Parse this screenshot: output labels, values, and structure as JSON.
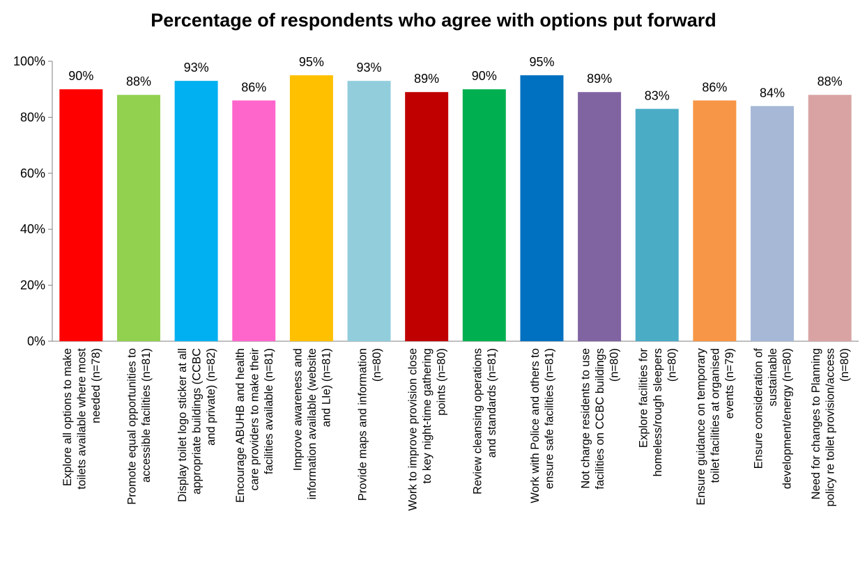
{
  "chart_data": {
    "type": "bar",
    "title": "Percentage of respondents who agree with options put forward",
    "xlabel": "",
    "ylabel": "",
    "ylim": [
      0,
      100
    ],
    "y_ticks": [
      "0%",
      "20%",
      "40%",
      "60%",
      "80%",
      "100%"
    ],
    "grid": false,
    "legend": "none",
    "categories": [
      [
        "Explore all options to make",
        "toilets available where most",
        "needed (n=78)"
      ],
      [
        "Promote equal opportunities to",
        "accessible facilities (n=81)"
      ],
      [
        "Display toilet logo sticker at all",
        "appropriate buildings (CCBC",
        "and private) (n=82)"
      ],
      [
        "Encourage ABUHB and health",
        "care providers to make their",
        "facilities available (n=81)"
      ],
      [
        "Improve awareness and",
        "information available (website",
        "and LIe) (n=81)"
      ],
      [
        "Provide maps and information",
        "(n=80)"
      ],
      [
        "Work to improve provision close",
        "to key night-time gathering",
        "points (n=80)"
      ],
      [
        "Review cleansing operations",
        "and standards (n=81)"
      ],
      [
        "Work with Police and others to",
        "ensure safe facilities (n=81)"
      ],
      [
        "Not charge residents to use",
        "facilities on CCBC buildings",
        "(n=80)"
      ],
      [
        "Explore facilities for",
        "homeless/rough sleepers",
        "(n=80)"
      ],
      [
        "Ensure guidance on temporary",
        "toilet facilities at organised",
        "events (n=79)"
      ],
      [
        "Ensure consideration of",
        "sustainable",
        "development/energy (n=80)"
      ],
      [
        "Need for changes to Planning",
        "policy re toilet provision/access",
        "(n=80)"
      ]
    ],
    "values": [
      90,
      88,
      93,
      86,
      95,
      93,
      89,
      90,
      95,
      89,
      83,
      86,
      84,
      88
    ],
    "data_labels": [
      "90%",
      "88%",
      "93%",
      "86%",
      "95%",
      "93%",
      "89%",
      "90%",
      "95%",
      "89%",
      "83%",
      "86%",
      "84%",
      "88%"
    ],
    "colors": [
      "#ff0000",
      "#92d050",
      "#00b0f0",
      "#ff66cc",
      "#ffc000",
      "#92cddc",
      "#c00000",
      "#00b050",
      "#0070c0",
      "#8064a2",
      "#4bacc6",
      "#f79646",
      "#a6b8d6",
      "#d9a3a3"
    ]
  }
}
